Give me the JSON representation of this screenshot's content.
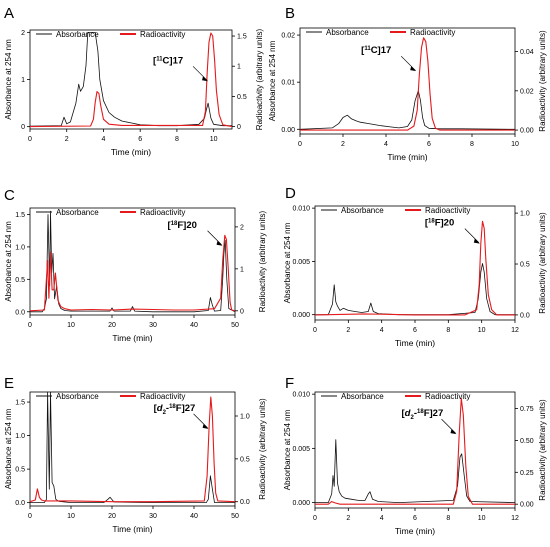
{
  "colors": {
    "absorbance": "#111111",
    "radioactivity": "#e41a1c",
    "axis": "#000000"
  },
  "chart_data": [
    {
      "panel": "A",
      "type": "line",
      "xlabel": "Time (min)",
      "ylabel": "Absorbance at 254 nm",
      "y2label": "Radioactivity (arbitrary units)",
      "xlim": [
        0,
        11
      ],
      "xticks": [
        0,
        2,
        4,
        6,
        8,
        10
      ],
      "ylim": [
        -0.05,
        2.05
      ],
      "yticks": [
        0,
        1,
        2
      ],
      "y2lim": [
        -0.04,
        1.6
      ],
      "y2ticks": [
        0.0,
        0.5,
        1.0,
        1.5
      ],
      "annotation": {
        "label": "[11C]17",
        "x": 9.75,
        "y2": 0.75
      },
      "series": [
        {
          "name": "Absorbance",
          "axis": "left",
          "color": "#111111",
          "x": [
            0,
            1.7,
            1.85,
            2.0,
            2.2,
            2.5,
            2.65,
            2.75,
            2.9,
            3.05,
            3.15,
            3.55,
            3.7,
            3.8,
            4.0,
            4.3,
            4.6,
            5.0,
            5.5,
            6.0,
            6.5,
            7.0,
            8.0,
            9.2,
            9.5,
            9.6,
            9.7,
            9.85,
            10.0,
            10.5,
            11
          ],
          "y": [
            0.01,
            0.02,
            0.2,
            0.06,
            0.1,
            0.5,
            0.9,
            0.75,
            0.85,
            1.3,
            2.0,
            2.0,
            1.6,
            1.0,
            0.55,
            0.3,
            0.2,
            0.12,
            0.08,
            0.04,
            0.03,
            0.02,
            0.02,
            0.05,
            0.18,
            0.35,
            0.5,
            0.18,
            0.05,
            0.02,
            0.02
          ]
        },
        {
          "name": "Radioactivity",
          "axis": "right",
          "color": "#e41a1c",
          "x": [
            0,
            3.3,
            3.45,
            3.55,
            3.65,
            3.75,
            3.85,
            4.0,
            4.3,
            5.0,
            6.0,
            9.4,
            9.55,
            9.65,
            9.75,
            9.85,
            9.95,
            10.05,
            10.15,
            10.3,
            10.5,
            11
          ],
          "y": [
            0.0,
            0.01,
            0.12,
            0.4,
            0.58,
            0.55,
            0.35,
            0.12,
            0.04,
            0.02,
            0.02,
            0.02,
            0.25,
            0.9,
            1.4,
            1.55,
            1.5,
            1.1,
            0.6,
            0.2,
            0.03,
            0.0
          ]
        }
      ]
    },
    {
      "panel": "B",
      "type": "line",
      "xlabel": "Time (min)",
      "ylabel": "Absorbance at 254 nm",
      "y2label": "Radioactivity (arbitrary units)",
      "xlim": [
        0,
        10
      ],
      "xticks": [
        0,
        2,
        4,
        6,
        8,
        10
      ],
      "ylim": [
        -0.001,
        0.0215
      ],
      "yticks": [
        0.0,
        0.01,
        0.02
      ],
      "yticklabels": [
        "0.00",
        "0.01",
        "0.02"
      ],
      "y2lim": [
        -0.002,
        0.052
      ],
      "y2ticks": [
        0.0,
        0.02,
        0.04
      ],
      "y2ticklabels": [
        "0.00",
        "0.02",
        "0.04"
      ],
      "annotation": {
        "label": "[11C]17",
        "x": 5.45,
        "y2": 0.03
      },
      "series": [
        {
          "name": "Absorbance",
          "axis": "left",
          "color": "#111111",
          "x": [
            0,
            1.5,
            1.8,
            2.0,
            2.2,
            2.4,
            2.6,
            2.8,
            3.2,
            3.7,
            4.2,
            4.6,
            5.0,
            5.2,
            5.35,
            5.5,
            5.6,
            5.7,
            5.8,
            6.0,
            6.5,
            7.5,
            10
          ],
          "y": [
            0.0,
            0.0003,
            0.0012,
            0.0025,
            0.003,
            0.0022,
            0.0018,
            0.0015,
            0.0012,
            0.0008,
            0.0005,
            0.0003,
            0.0006,
            0.002,
            0.006,
            0.0082,
            0.0062,
            0.0025,
            0.0008,
            0.0002,
            0.0001,
            0.0001,
            0.0
          ]
        },
        {
          "name": "Radioactivity",
          "axis": "right",
          "color": "#e41a1c",
          "x": [
            0,
            5.0,
            5.3,
            5.45,
            5.55,
            5.65,
            5.75,
            5.85,
            5.95,
            6.05,
            6.15,
            6.3,
            6.5,
            10
          ],
          "y": [
            0.0,
            0.0,
            0.002,
            0.01,
            0.028,
            0.042,
            0.047,
            0.045,
            0.035,
            0.018,
            0.006,
            0.001,
            0.0,
            0.0
          ]
        }
      ]
    },
    {
      "panel": "C",
      "type": "line",
      "xlabel": "Time (min)",
      "ylabel": "Absorbance at 254 nm",
      "y2label": "Radioactivity (arbitrary units)",
      "xlim": [
        0,
        50
      ],
      "xticks": [
        0,
        10,
        20,
        30,
        40,
        50
      ],
      "ylim": [
        -0.05,
        1.6
      ],
      "yticks": [
        0.0,
        0.5,
        1.0,
        1.5
      ],
      "yticklabels": [
        "0.0",
        "0.5",
        "1.0",
        "1.5"
      ],
      "y2lim": [
        -0.1,
        2.45
      ],
      "y2ticks": [
        0,
        1,
        2
      ],
      "annotation": {
        "label": "[18F]20",
        "x": 47.2,
        "y2": 1.55
      },
      "series": [
        {
          "name": "Absorbance",
          "axis": "left",
          "color": "#111111",
          "x": [
            0,
            3.0,
            3.5,
            4.0,
            4.4,
            4.8,
            5.0,
            5.3,
            5.6,
            6.0,
            6.5,
            7.0,
            7.5,
            8.5,
            10,
            15,
            19.5,
            20,
            20.5,
            24.5,
            25,
            25.5,
            30,
            40,
            43.5,
            44,
            44.5,
            45,
            46.5,
            47.0,
            47.3,
            47.6,
            48.0,
            48.5,
            50
          ],
          "y": [
            0.0,
            0.0,
            0.05,
            0.2,
            1.5,
            0.4,
            1.55,
            0.6,
            0.9,
            0.2,
            0.4,
            0.12,
            0.05,
            0.02,
            0.01,
            0.01,
            0.01,
            0.06,
            0.01,
            0.01,
            0.08,
            0.01,
            0.0,
            0.0,
            0.02,
            0.22,
            0.1,
            0.01,
            0.02,
            0.5,
            0.9,
            1.1,
            0.5,
            0.05,
            0.0
          ]
        },
        {
          "name": "Radioactivity",
          "axis": "right",
          "color": "#e41a1c",
          "x": [
            0,
            3.5,
            3.9,
            4.3,
            4.6,
            5.0,
            5.4,
            5.8,
            6.2,
            6.8,
            7.5,
            8.5,
            10,
            15,
            20,
            25,
            30,
            35,
            40,
            45,
            46.5,
            47.0,
            47.5,
            47.9,
            48.3,
            48.8,
            49.2,
            50
          ],
          "y": [
            0.0,
            0.02,
            0.6,
            1.2,
            0.3,
            1.4,
            0.5,
            0.5,
            0.9,
            0.25,
            0.1,
            0.05,
            0.02,
            0.03,
            0.02,
            0.04,
            0.03,
            0.02,
            0.02,
            0.05,
            0.3,
            1.2,
            1.8,
            1.7,
            1.1,
            0.2,
            0.02,
            0.0
          ]
        }
      ]
    },
    {
      "panel": "D",
      "type": "line",
      "xlabel": "Time (min)",
      "ylabel": "Absorbance at 254 nm",
      "y2label": "Radioactivity (arbitrary units)",
      "xlim": [
        0,
        12
      ],
      "xticks": [
        0,
        2,
        4,
        6,
        8,
        10,
        12
      ],
      "ylim": [
        -0.0005,
        0.0102
      ],
      "yticks": [
        0.0,
        0.005,
        0.01
      ],
      "yticklabels": [
        "0.000",
        "0.005",
        "0.010"
      ],
      "y2lim": [
        -0.05,
        1.07
      ],
      "y2ticks": [
        0.0,
        0.5,
        1.0
      ],
      "y2ticklabels": [
        "0.0",
        "0.5",
        "1.0"
      ],
      "annotation": {
        "label": "[18F]20",
        "x": 9.95,
        "y2": 0.7
      },
      "series": [
        {
          "name": "Absorbance",
          "axis": "left",
          "color": "#111111",
          "x": [
            0,
            0.8,
            1.05,
            1.15,
            1.25,
            1.35,
            1.5,
            1.7,
            2.0,
            2.4,
            2.8,
            3.2,
            3.35,
            3.5,
            3.8,
            5.0,
            8.0,
            9.6,
            9.8,
            9.95,
            10.05,
            10.15,
            10.3,
            10.5,
            10.8,
            12
          ],
          "y": [
            0.0,
            0.0,
            0.001,
            0.0028,
            0.0012,
            0.0008,
            0.0004,
            0.0006,
            0.0004,
            0.0003,
            0.0002,
            0.0003,
            0.0011,
            0.0003,
            0.0001,
            0.0,
            0.0,
            0.0002,
            0.0015,
            0.004,
            0.0048,
            0.004,
            0.0015,
            0.0003,
            0.0,
            0.0
          ]
        },
        {
          "name": "Radioactivity",
          "axis": "right",
          "color": "#e41a1c",
          "x": [
            0,
            3.0,
            6.0,
            9.0,
            9.7,
            9.85,
            9.95,
            10.05,
            10.15,
            10.25,
            10.4,
            10.6,
            10.9,
            12
          ],
          "y": [
            0.0,
            0.01,
            0.0,
            0.0,
            0.05,
            0.3,
            0.7,
            0.92,
            0.85,
            0.55,
            0.2,
            0.05,
            0.0,
            0.0
          ]
        }
      ]
    },
    {
      "panel": "E",
      "type": "line",
      "xlabel": "Time (min)",
      "ylabel": "Absorbance at 254 nm",
      "y2label": "Radioactivity (arbitrary units)",
      "xlim": [
        0,
        50
      ],
      "xticks": [
        0,
        10,
        20,
        30,
        40,
        50
      ],
      "ylim": [
        -0.05,
        1.65
      ],
      "yticks": [
        0.0,
        0.5,
        1.0,
        1.5
      ],
      "yticklabels": [
        "0.0",
        "0.5",
        "1.0",
        "1.5"
      ],
      "y2lim": [
        -0.05,
        1.28
      ],
      "y2ticks": [
        0.0,
        0.5,
        1.0
      ],
      "y2ticklabels": [
        "0.0",
        "0.5",
        "1.0"
      ],
      "annotation": {
        "label": "[d2-18F]27",
        "x": 43.8,
        "y2": 0.85
      },
      "series": [
        {
          "name": "Absorbance",
          "axis": "left",
          "color": "#111111",
          "x": [
            0,
            3.5,
            4.0,
            4.3,
            4.7,
            5.0,
            5.4,
            5.8,
            6.3,
            7.0,
            10,
            18,
            19,
            19.5,
            20.5,
            30,
            43,
            43.5,
            44,
            44.5,
            45,
            50
          ],
          "y": [
            0.0,
            0.0,
            0.05,
            1.65,
            0.2,
            1.65,
            0.3,
            0.25,
            0.05,
            0.02,
            0.0,
            0.0,
            0.05,
            0.08,
            0.01,
            0.0,
            0.0,
            0.05,
            0.4,
            0.2,
            0.0,
            0.0
          ]
        },
        {
          "name": "Radioactivity",
          "axis": "right",
          "color": "#e41a1c",
          "x": [
            0,
            1.3,
            1.8,
            2.3,
            2.8,
            3.5,
            5.0,
            10,
            20,
            30,
            42.5,
            43.2,
            43.7,
            44.1,
            44.5,
            44.9,
            45.3,
            45.8,
            50
          ],
          "y": [
            0.0,
            0.02,
            0.15,
            0.05,
            0.02,
            0.01,
            0.01,
            0.01,
            0.0,
            0.0,
            0.01,
            0.3,
            0.9,
            1.22,
            1.0,
            0.45,
            0.1,
            0.01,
            0.0
          ]
        }
      ]
    },
    {
      "panel": "F",
      "type": "line",
      "xlabel": "Time (min)",
      "ylabel": "Absorbance at 254 nm",
      "y2label": "Radioactivity (arbitrary units)",
      "xlim": [
        0,
        12
      ],
      "xticks": [
        0,
        2,
        4,
        6,
        8,
        10,
        12
      ],
      "ylim": [
        -0.0005,
        0.0102
      ],
      "yticks": [
        0.0,
        0.005,
        0.01
      ],
      "yticklabels": [
        "0.000",
        "0.005",
        "0.010"
      ],
      "y2lim": [
        -0.03,
        0.88
      ],
      "y2ticks": [
        0.0,
        0.25,
        0.5,
        0.75
      ],
      "y2ticklabels": [
        "0.00",
        "0.25",
        "0.50",
        "0.75"
      ],
      "annotation": {
        "label": "[d2-18F]27",
        "x": 8.55,
        "y2": 0.55
      },
      "series": [
        {
          "name": "Absorbance",
          "axis": "left",
          "color": "#111111",
          "x": [
            0,
            0.8,
            1.0,
            1.08,
            1.15,
            1.25,
            1.35,
            1.45,
            1.6,
            1.8,
            2.2,
            2.6,
            3.0,
            3.2,
            3.3,
            3.45,
            3.8,
            5.0,
            8.3,
            8.55,
            8.7,
            8.8,
            8.95,
            9.1,
            9.3,
            12
          ],
          "y": [
            0.0,
            0.0,
            0.0008,
            0.0025,
            0.0015,
            0.0058,
            0.0018,
            0.001,
            0.0006,
            0.0004,
            0.0003,
            0.0002,
            0.0002,
            0.0008,
            0.001,
            0.0003,
            0.0001,
            0.0,
            0.0002,
            0.0015,
            0.0042,
            0.0045,
            0.0025,
            0.0006,
            0.0001,
            0.0
          ]
        },
        {
          "name": "Radioactivity",
          "axis": "right",
          "color": "#e41a1c",
          "x": [
            0,
            0.8,
            1.0,
            1.2,
            1.5,
            3.0,
            8.3,
            8.5,
            8.65,
            8.78,
            8.9,
            9.05,
            9.2,
            9.45,
            12
          ],
          "y": [
            0.0,
            0.0,
            0.02,
            0.01,
            0.0,
            0.0,
            0.0,
            0.1,
            0.55,
            0.83,
            0.7,
            0.3,
            0.06,
            0.0,
            0.0
          ]
        }
      ]
    }
  ]
}
